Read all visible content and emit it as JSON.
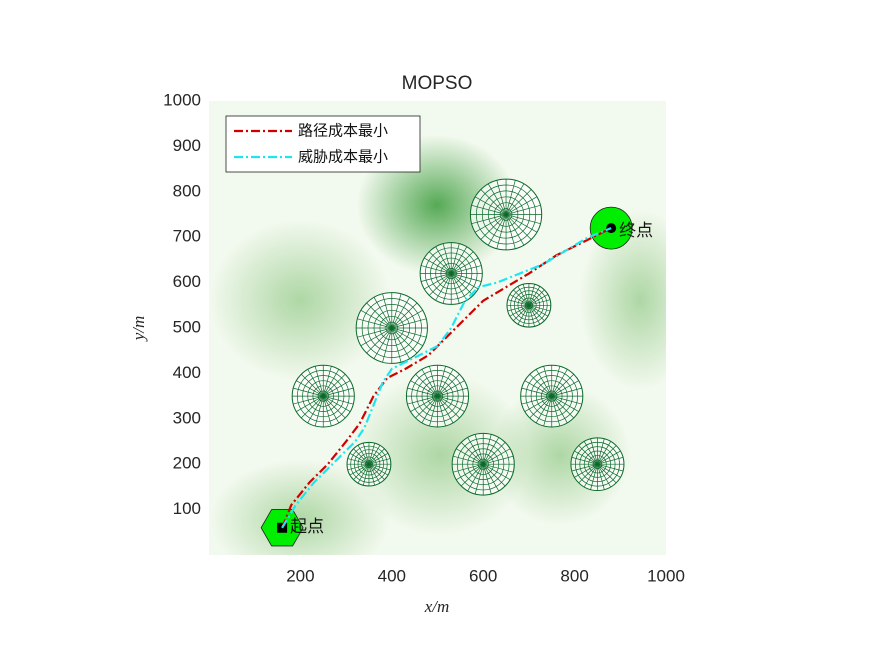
{
  "chart_data": {
    "type": "line",
    "title": "MOPSO",
    "xlabel": "x/m",
    "ylabel": "y/m",
    "xlim": [
      0,
      1000
    ],
    "ylim": [
      0,
      1000
    ],
    "xticks": [
      200,
      400,
      600,
      800,
      1000
    ],
    "yticks": [
      100,
      200,
      300,
      400,
      500,
      600,
      700,
      800,
      900,
      1000
    ],
    "legend": "northwest",
    "series": [
      {
        "name": "路径成本最小",
        "color": "#d00000",
        "x": [
          160,
          180,
          220,
          260,
          300,
          330,
          360,
          390,
          430,
          480,
          520,
          560,
          600,
          650,
          700,
          760,
          820,
          880
        ],
        "values": [
          60,
          110,
          160,
          200,
          250,
          290,
          350,
          390,
          410,
          440,
          480,
          520,
          560,
          590,
          620,
          660,
          690,
          720
        ]
      },
      {
        "name": "威胁成本最小",
        "color": "#1ee6f0",
        "x": [
          160,
          190,
          230,
          280,
          320,
          340,
          360,
          380,
          400,
          440,
          500,
          530,
          560,
          590,
          630,
          680,
          730,
          780,
          830,
          880
        ],
        "values": [
          60,
          110,
          160,
          210,
          250,
          280,
          330,
          380,
          410,
          430,
          460,
          500,
          560,
          590,
          600,
          620,
          640,
          670,
          700,
          720
        ]
      }
    ],
    "obstacles": [
      {
        "x": 650,
        "y": 750,
        "r": 78
      },
      {
        "x": 530,
        "y": 620,
        "r": 68
      },
      {
        "x": 700,
        "y": 550,
        "r": 48
      },
      {
        "x": 400,
        "y": 500,
        "r": 78
      },
      {
        "x": 250,
        "y": 350,
        "r": 68
      },
      {
        "x": 500,
        "y": 350,
        "r": 68
      },
      {
        "x": 750,
        "y": 350,
        "r": 68
      },
      {
        "x": 350,
        "y": 200,
        "r": 48
      },
      {
        "x": 600,
        "y": 200,
        "r": 68
      },
      {
        "x": 850,
        "y": 200,
        "r": 58
      }
    ],
    "start": {
      "x": 160,
      "y": 60,
      "label": "起点"
    },
    "end": {
      "x": 880,
      "y": 720,
      "label": "终点"
    }
  }
}
